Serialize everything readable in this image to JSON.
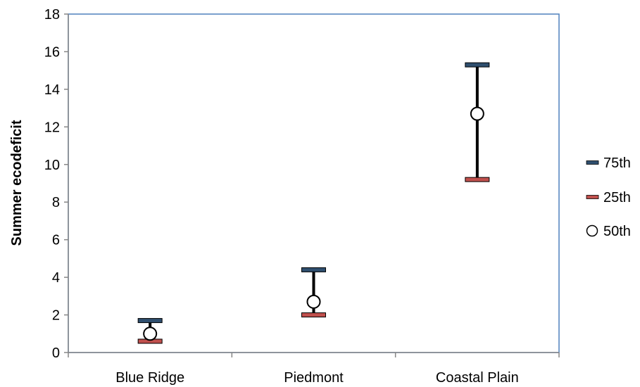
{
  "chart_data": {
    "type": "scatter",
    "ylabel": "Summer ecodeficit",
    "xlabel": "",
    "ylim": [
      0,
      18
    ],
    "yticks": [
      0,
      2,
      4,
      6,
      8,
      10,
      12,
      14,
      16,
      18
    ],
    "categories": [
      "Blue Ridge",
      "Piedmont",
      "Coastal Plain"
    ],
    "series": [
      {
        "name": "75th",
        "values": [
          1.7,
          4.4,
          15.3
        ],
        "marker": "dash",
        "color": "#2f4f6f"
      },
      {
        "name": "25th",
        "values": [
          0.6,
          2.0,
          9.2
        ],
        "marker": "dash",
        "color": "#c0504d"
      },
      {
        "name": "50th",
        "values": [
          1.0,
          2.7,
          12.7
        ],
        "marker": "circle",
        "color": "#000000"
      }
    ],
    "grid": false,
    "legend": "right",
    "frame_color": "#4f81bd"
  }
}
